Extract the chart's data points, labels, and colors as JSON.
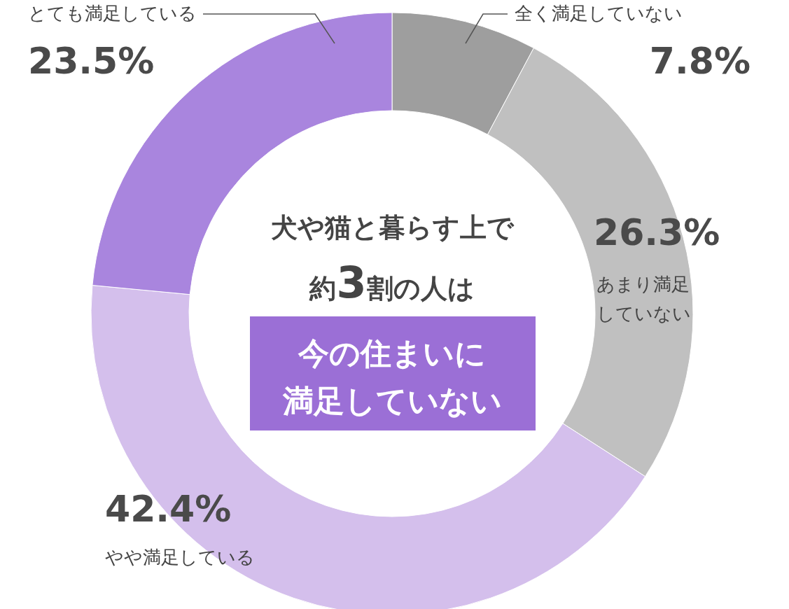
{
  "chart_data": {
    "type": "donut",
    "categories": [
      "全く満足していない",
      "あまり満足していない",
      "やや満足している",
      "とても満足している"
    ],
    "values": [
      7.8,
      26.3,
      42.4,
      23.5
    ],
    "colors": [
      "#9e9e9e",
      "#c0c0c0",
      "#d4bfec",
      "#a985de"
    ],
    "value_labels": [
      "7.8%",
      "26.3%",
      "42.4%",
      "23.5%"
    ],
    "annotations": [
      "犬や猫と暮らす上で",
      "約3割の人は",
      "今の住まいに",
      "満足していない"
    ]
  }
}
